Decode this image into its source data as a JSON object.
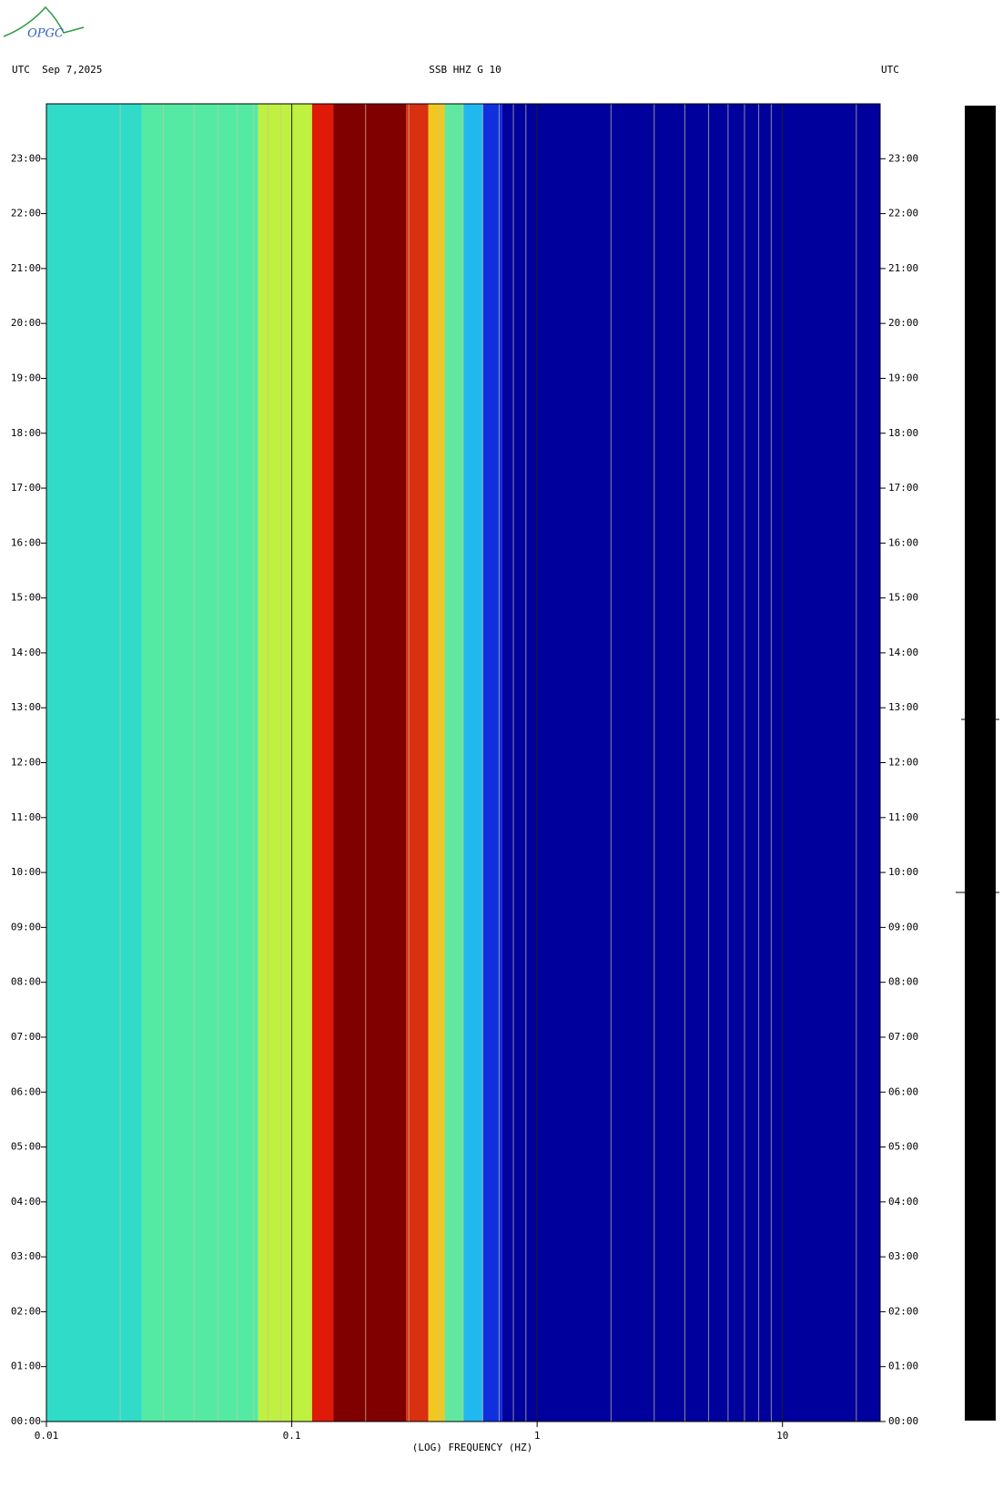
{
  "chart_data": {
    "type": "spectrogram",
    "logo": "OPGC",
    "title": "SSB HHZ G 10",
    "left_header": "UTC  Sep 7,2025",
    "right_header": "UTC",
    "xlabel": "(LOG) FREQUENCY (HZ)",
    "xscale": "log",
    "xlim": [
      0.01,
      25
    ],
    "xticks": [
      0.01,
      0.1,
      1,
      10
    ],
    "minor_xticks": [
      0.02,
      0.03,
      0.04,
      0.05,
      0.06,
      0.07,
      0.08,
      0.09,
      0.2,
      0.3,
      0.4,
      0.5,
      0.6,
      0.7,
      0.8,
      0.9,
      2,
      3,
      4,
      5,
      6,
      7,
      8,
      9,
      20
    ],
    "ylim": [
      0,
      24
    ],
    "yticks": [
      {
        "value": 0,
        "label": "00:00"
      },
      {
        "value": 1,
        "label": "01:00"
      },
      {
        "value": 2,
        "label": "02:00"
      },
      {
        "value": 3,
        "label": "03:00"
      },
      {
        "value": 4,
        "label": "04:00"
      },
      {
        "value": 5,
        "label": "05:00"
      },
      {
        "value": 6,
        "label": "06:00"
      },
      {
        "value": 7,
        "label": "07:00"
      },
      {
        "value": 8,
        "label": "08:00"
      },
      {
        "value": 9,
        "label": "09:00"
      },
      {
        "value": 10,
        "label": "10:00"
      },
      {
        "value": 11,
        "label": "11:00"
      },
      {
        "value": 12,
        "label": "12:00"
      },
      {
        "value": 13,
        "label": "13:00"
      },
      {
        "value": 14,
        "label": "14:00"
      },
      {
        "value": 15,
        "label": "15:00"
      },
      {
        "value": 16,
        "label": "16:00"
      },
      {
        "value": 17,
        "label": "17:00"
      },
      {
        "value": 18,
        "label": "18:00"
      },
      {
        "value": 19,
        "label": "19:00"
      },
      {
        "value": 20,
        "label": "20:00"
      },
      {
        "value": 21,
        "label": "21:00"
      },
      {
        "value": 22,
        "label": "22:00"
      },
      {
        "value": 23,
        "label": "23:00"
      }
    ],
    "band_edges": [
      0.01,
      0.0245,
      0.073,
      0.121,
      0.148,
      0.292,
      0.36,
      0.42,
      0.5,
      0.6,
      0.72,
      25
    ],
    "band_colors": [
      "#30dcc8",
      "#54eaa4",
      "#c0f040",
      "#e01a08",
      "#800000",
      "#d83010",
      "#f0c820",
      "#60e8a0",
      "#20b8f0",
      "#1030e0",
      "#00009c"
    ],
    "grid": true
  }
}
